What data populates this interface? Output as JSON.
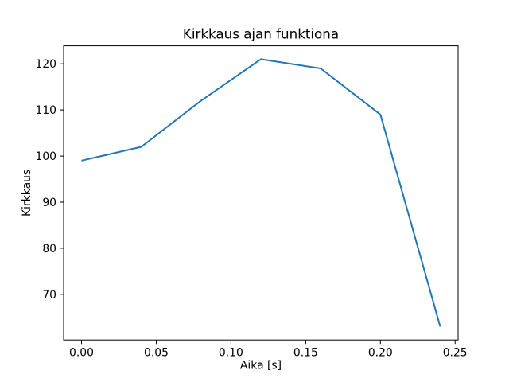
{
  "chart_data": {
    "type": "line",
    "title": "Kirkkaus ajan funktiona",
    "xlabel": "Aika [s]",
    "ylabel": "Kirkkaus",
    "x": [
      0.0,
      0.04,
      0.08,
      0.12,
      0.16,
      0.2,
      0.24
    ],
    "y": [
      99,
      102,
      112,
      121,
      119,
      109,
      63
    ],
    "series_name": "Kirkkaus",
    "xlim": [
      -0.012,
      0.252
    ],
    "ylim": [
      60.1,
      123.9
    ],
    "xtick_values": [
      0.0,
      0.05,
      0.1,
      0.15,
      0.2,
      0.25
    ],
    "xtick_labels": [
      "0.00",
      "0.05",
      "0.10",
      "0.15",
      "0.20",
      "0.25"
    ],
    "ytick_values": [
      70,
      80,
      90,
      100,
      110,
      120
    ],
    "ytick_labels": [
      "70",
      "80",
      "90",
      "100",
      "110",
      "120"
    ],
    "line_color": "#1f77b4",
    "axis_color": "#000000",
    "background_color": "#ffffff",
    "grid": false,
    "legend_position": "none",
    "markers": false
  }
}
